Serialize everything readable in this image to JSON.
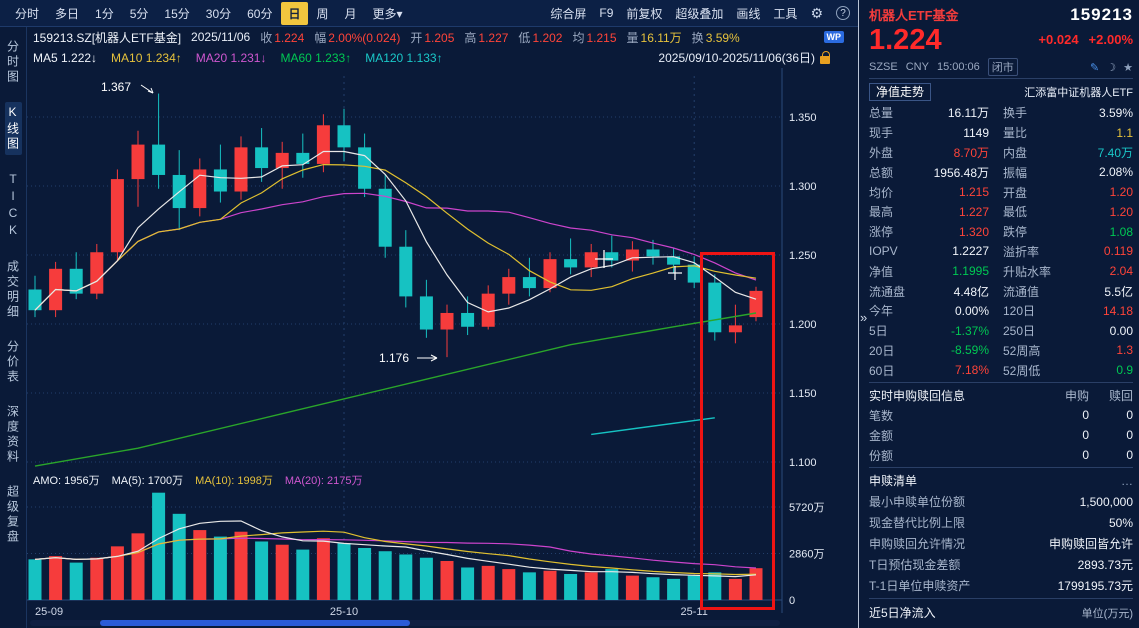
{
  "topbar": {
    "periods": [
      "分时",
      "多日",
      "1分",
      "5分",
      "15分",
      "30分",
      "60分",
      "日",
      "周",
      "月",
      "更多"
    ],
    "active_period": "日",
    "more_arrow": "▾",
    "tools": [
      "综合屏",
      "F9",
      "前复权",
      "超级叠加",
      "画线",
      "工具"
    ],
    "gear_icon": "⚙",
    "help_label": "?"
  },
  "infobar": {
    "symbol": "159213.SZ[机器人ETF基金]",
    "date": "2025/11/06",
    "fields": [
      {
        "label": "收",
        "value": "1.224",
        "c": "r"
      },
      {
        "label": "幅",
        "value": "2.00%(0.024)",
        "c": "r"
      },
      {
        "label": "开",
        "value": "1.205",
        "c": "r"
      },
      {
        "label": "高",
        "value": "1.227",
        "c": "r"
      },
      {
        "label": "低",
        "value": "1.202",
        "c": "r"
      },
      {
        "label": "均",
        "value": "1.215",
        "c": "r"
      },
      {
        "label": "量",
        "value": "16.11万",
        "c": "y"
      },
      {
        "label": "换",
        "value": "3.59%",
        "c": "y"
      }
    ],
    "wp_badge": "WP"
  },
  "mabar": {
    "items": [
      {
        "text": "MA5 1.222↓",
        "c": "w"
      },
      {
        "text": "MA10 1.234↑",
        "c": "y"
      },
      {
        "text": "MA20 1.231↓",
        "c": "m"
      },
      {
        "text": "MA60 1.233↑",
        "c": "g"
      },
      {
        "text": "MA120 1.133↑",
        "c": "c"
      }
    ],
    "range": "2025/09/10-2025/11/06(36日)"
  },
  "sidebar": {
    "items": [
      "分时图",
      "K线图",
      "TICK",
      "成交明细",
      "分价表",
      "深度资料",
      "超级复盘"
    ],
    "active": "K线图"
  },
  "chart": {
    "annotations": {
      "high_label": "1.367",
      "low_label": "1.176"
    },
    "y_labels": [
      "1.350",
      "1.300",
      "1.250",
      "1.200",
      "1.150",
      "1.100"
    ],
    "x_labels": [
      "25-09",
      "25-10",
      "25-11"
    ],
    "amo_line": [
      {
        "text": "AMO: 1956万",
        "c": "w"
      },
      {
        "text": "MA(5): 1700万",
        "c": "w"
      },
      {
        "text": "MA(10): 1998万",
        "c": "y"
      },
      {
        "text": "MA(20): 2175万",
        "c": "m"
      }
    ],
    "vol_labels": [
      "5720万",
      "2860万",
      "0"
    ]
  },
  "chart_data": {
    "type": "candlestick",
    "price_axis": {
      "min": 1.1,
      "max": 1.38,
      "grid": [
        1.35,
        1.3,
        1.25,
        1.2,
        1.15,
        1.1
      ]
    },
    "volume_axis": {
      "grid": [
        5720,
        2860,
        0
      ],
      "unit": "万"
    },
    "candles": [
      [
        1.225,
        1.235,
        1.205,
        1.21,
        2500
      ],
      [
        1.21,
        1.245,
        1.205,
        1.24,
        2700
      ],
      [
        1.24,
        1.252,
        1.218,
        1.222,
        2300
      ],
      [
        1.222,
        1.258,
        1.218,
        1.252,
        2600
      ],
      [
        1.252,
        1.312,
        1.246,
        1.305,
        3300
      ],
      [
        1.305,
        1.34,
        1.285,
        1.33,
        4100
      ],
      [
        1.33,
        1.367,
        1.298,
        1.308,
        6600
      ],
      [
        1.308,
        1.326,
        1.268,
        1.284,
        5300
      ],
      [
        1.284,
        1.32,
        1.278,
        1.312,
        4300
      ],
      [
        1.312,
        1.33,
        1.288,
        1.296,
        3900
      ],
      [
        1.296,
        1.336,
        1.29,
        1.328,
        4200
      ],
      [
        1.328,
        1.342,
        1.303,
        1.313,
        3600
      ],
      [
        1.313,
        1.332,
        1.298,
        1.324,
        3400
      ],
      [
        1.324,
        1.338,
        1.306,
        1.316,
        3100
      ],
      [
        1.316,
        1.352,
        1.31,
        1.344,
        3800
      ],
      [
        1.344,
        1.356,
        1.318,
        1.328,
        3500
      ],
      [
        1.328,
        1.338,
        1.292,
        1.298,
        3200
      ],
      [
        1.298,
        1.308,
        1.248,
        1.256,
        3000
      ],
      [
        1.256,
        1.268,
        1.212,
        1.22,
        2800
      ],
      [
        1.22,
        1.232,
        1.19,
        1.196,
        2600
      ],
      [
        1.196,
        1.214,
        1.176,
        1.208,
        2400
      ],
      [
        1.208,
        1.22,
        1.192,
        1.198,
        2000
      ],
      [
        1.198,
        1.228,
        1.196,
        1.222,
        2100
      ],
      [
        1.222,
        1.24,
        1.214,
        1.234,
        1900
      ],
      [
        1.234,
        1.248,
        1.22,
        1.226,
        1700
      ],
      [
        1.226,
        1.252,
        1.223,
        1.247,
        1800
      ],
      [
        1.247,
        1.262,
        1.236,
        1.241,
        1600
      ],
      [
        1.241,
        1.258,
        1.234,
        1.252,
        1700
      ],
      [
        1.252,
        1.264,
        1.241,
        1.246,
        1900
      ],
      [
        1.246,
        1.26,
        1.238,
        1.254,
        1500
      ],
      [
        1.254,
        1.261,
        1.243,
        1.249,
        1400
      ],
      [
        1.249,
        1.255,
        1.237,
        1.243,
        1300
      ],
      [
        1.243,
        1.249,
        1.226,
        1.23,
        1500
      ],
      [
        1.23,
        1.236,
        1.188,
        1.194,
        1700
      ],
      [
        1.194,
        1.214,
        1.186,
        1.199,
        1300
      ],
      [
        1.205,
        1.227,
        1.202,
        1.224,
        1956
      ]
    ],
    "ma60_line": [
      [
        0,
        1.097
      ],
      [
        5,
        1.11
      ],
      [
        12,
        1.135
      ],
      [
        19,
        1.16
      ],
      [
        26,
        1.185
      ],
      [
        31,
        1.198
      ],
      [
        35,
        1.208
      ]
    ],
    "ma120_line": [
      [
        27,
        1.12
      ],
      [
        33,
        1.132
      ]
    ],
    "colors": {
      "up": "#f63c3c",
      "down": "#16c2c2",
      "ma5": "#e8e8e8",
      "ma10": "#e0c030",
      "ma20": "#cc44cc",
      "ma60": "#2aa52a",
      "ma120": "#16c2c2"
    }
  },
  "panel": {
    "name": "机器人ETF基金",
    "code": "159213",
    "price": "1.224",
    "change": "+0.024",
    "change_pct": "+2.00%",
    "exchange": "SZSE",
    "currency": "CNY",
    "time": "15:00:06",
    "status": "闭市",
    "collapse_arrow": "»",
    "nav_tab": "净值走势",
    "fund_name": "汇添富中证机器人ETF",
    "stats": [
      {
        "l1": "总量",
        "v1": "16.11万",
        "c1": "w",
        "l2": "换手",
        "v2": "3.59%",
        "c2": "w"
      },
      {
        "l1": "现手",
        "v1": "1149",
        "c1": "w",
        "l2": "量比",
        "v2": "1.1",
        "c2": "y"
      },
      {
        "l1": "外盘",
        "v1": "8.70万",
        "c1": "r",
        "l2": "内盘",
        "v2": "7.40万",
        "c2": "c"
      },
      {
        "l1": "总额",
        "v1": "1956.48万",
        "c1": "w",
        "l2": "振幅",
        "v2": "2.08%",
        "c2": "w"
      },
      {
        "l1": "均价",
        "v1": "1.215",
        "c1": "r",
        "l2": "开盘",
        "v2": "1.20",
        "c2": "r"
      },
      {
        "l1": "最高",
        "v1": "1.227",
        "c1": "r",
        "l2": "最低",
        "v2": "1.20",
        "c2": "r"
      },
      {
        "l1": "涨停",
        "v1": "1.320",
        "c1": "r",
        "l2": "跌停",
        "v2": "1.08",
        "c2": "g"
      },
      {
        "l1": "IOPV",
        "v1": "1.2227",
        "c1": "w",
        "l2": "溢折率",
        "v2": "0.119",
        "c2": "r"
      },
      {
        "l1": "净值",
        "v1": "1.1995",
        "c1": "g",
        "l2": "升贴水率",
        "v2": "2.04",
        "c2": "r"
      },
      {
        "l1": "流通盘",
        "v1": "4.48亿",
        "c1": "w",
        "l2": "流通值",
        "v2": "5.5亿",
        "c2": "w"
      },
      {
        "l1": "今年",
        "v1": "0.00%",
        "c1": "w",
        "l2": "120日",
        "v2": "14.18",
        "c2": "r"
      },
      {
        "l1": "5日",
        "v1": "-1.37%",
        "c1": "g",
        "l2": "250日",
        "v2": "0.00",
        "c2": "w"
      },
      {
        "l1": "20日",
        "v1": "-8.59%",
        "c1": "g",
        "l2": "52周高",
        "v2": "1.3",
        "c2": "r"
      },
      {
        "l1": "60日",
        "v1": "7.18%",
        "c1": "r",
        "l2": "52周低",
        "v2": "0.9",
        "c2": "g"
      }
    ],
    "subscription": {
      "title": "实时申购赎回信息",
      "col1": "申购",
      "col2": "赎回",
      "rows": [
        {
          "label": "笔数",
          "v1": "0",
          "v2": "0"
        },
        {
          "label": "金额",
          "v1": "0",
          "v2": "0"
        },
        {
          "label": "份额",
          "v1": "0",
          "v2": "0"
        }
      ]
    },
    "redemption": {
      "title": "申赎清单",
      "more": "…",
      "rows": [
        {
          "label": "最小申赎单位份额",
          "value": "1,500,000"
        },
        {
          "label": "现金替代比例上限",
          "value": "50%"
        },
        {
          "label": "申购赎回允许情况",
          "value": "申购赎回皆允许"
        },
        {
          "label": "T日预估现金差额",
          "value": "2893.73元"
        },
        {
          "label": "T-1日单位申赎资产",
          "value": "1799195.73元"
        }
      ]
    },
    "footer": {
      "title": "近5日净流入",
      "unit": "单位(万元)"
    }
  }
}
